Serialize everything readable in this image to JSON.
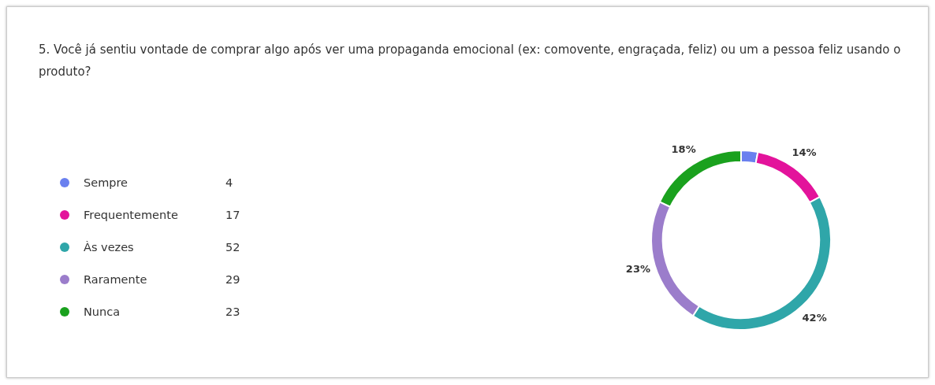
{
  "chart_data": {
    "type": "donut",
    "title": "5. Você já sentiu vontade de comprar algo após ver uma propaganda emocional (ex: comovente, engraçada, feliz) ou um a pessoa feliz usando o produto?",
    "categories": [
      "Sempre",
      "Frequentemente",
      "Às vezes",
      "Raramente",
      "Nunca"
    ],
    "values": [
      3,
      14,
      42,
      23,
      18
    ],
    "annotations": [
      "4",
      "17",
      "52",
      "29",
      "23"
    ],
    "colors": [
      "#6a80ef",
      "#e3139b",
      "#2fa6a9",
      "#9b7dcb",
      "#1aa11e"
    ],
    "value_labels": [
      null,
      "14%",
      "42%",
      "23%",
      "18%"
    ],
    "legend": "left"
  }
}
